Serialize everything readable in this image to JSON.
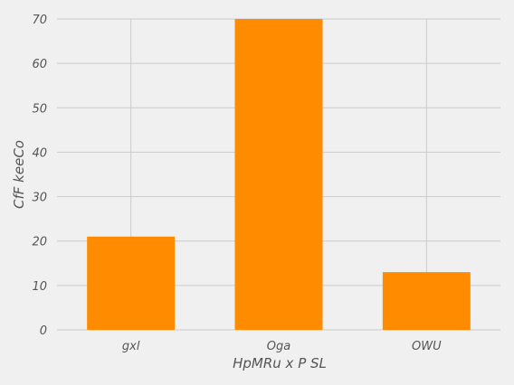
{
  "chart_data": {
    "type": "bar",
    "categories": [
      "gxl",
      "Oga",
      "OWU"
    ],
    "values": [
      21,
      70,
      13
    ],
    "xlabel": "HpMRu x P SL",
    "ylabel": "CfF   keeCo",
    "ylim": [
      0,
      70
    ],
    "yticks": [
      0,
      10,
      20,
      30,
      40,
      50,
      60,
      70
    ],
    "grid": true,
    "colors": {
      "bar": "#ff8c00",
      "grid": "#cbcbcb",
      "background": "#f0f0f0",
      "text": "#555555"
    }
  }
}
